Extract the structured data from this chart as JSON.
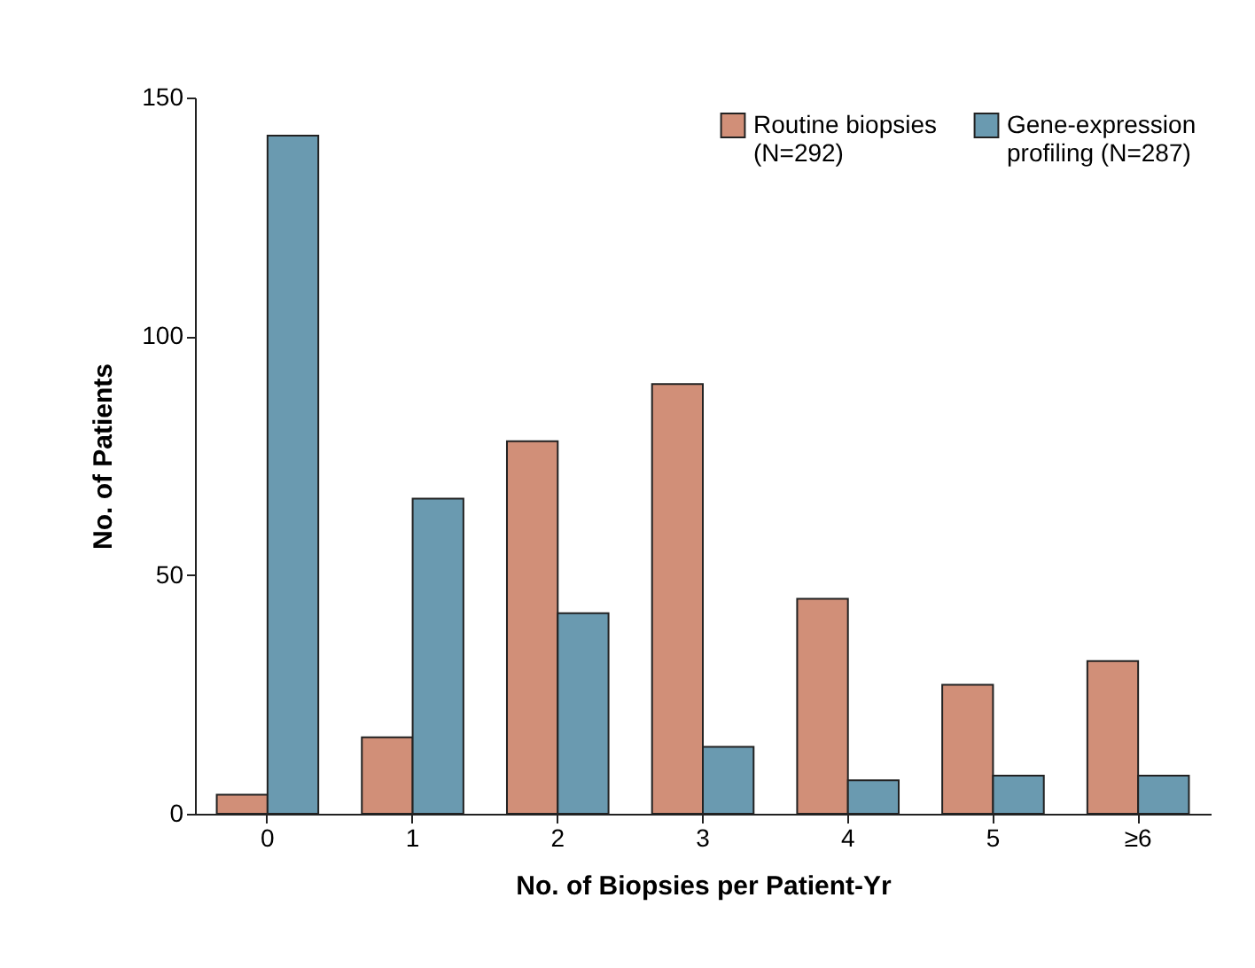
{
  "chart_data": {
    "type": "bar",
    "xlabel": "No. of Biopsies per Patient-Yr",
    "ylabel": "No. of Patients",
    "categories": [
      "0",
      "1",
      "2",
      "3",
      "4",
      "5",
      "≥6"
    ],
    "series": [
      {
        "name": "Routine biopsies\n(N=292)",
        "color": "#d18f78",
        "values": [
          4,
          16,
          78,
          90,
          45,
          27,
          32
        ]
      },
      {
        "name": "Gene-expression\nprofiling (N=287)",
        "color": "#6a9ab0",
        "values": [
          142,
          66,
          42,
          14,
          7,
          8,
          8
        ]
      }
    ],
    "ylim": [
      0,
      150
    ],
    "yticks": [
      0,
      50,
      100,
      150
    ],
    "grid": false,
    "legend": "top right"
  }
}
